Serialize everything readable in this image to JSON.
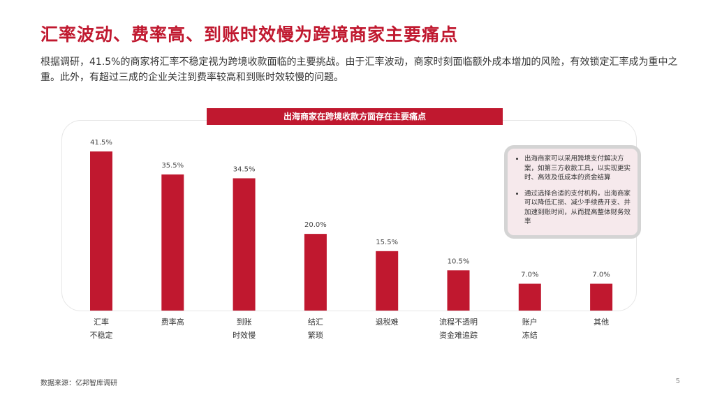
{
  "title": "汇率波动、费率高、到账时效慢为跨境商家主要痛点",
  "intro": "根据调研，41.5%的商家将汇率不稳定视为跨境收款面临的主要挑战。由于汇率波动，商家时刻面临额外成本增加的风险，有效锁定汇率成为重中之重。此外，有超过三成的企业关注到费率较高和到账时效较慢的问题。",
  "note": {
    "items": [
      "出海商家可以采用跨境支付解决方案，如第三方收款工具，以实现更实时、高效及低成本的资金结算",
      "通过选择合适的支付机构，出海商家可以降低汇损、减少手续费开支、并加速到账时间，从而提高整体财务效率"
    ]
  },
  "source": "数据来源：亿邦智库调研",
  "page_number": "5",
  "colors": {
    "accent": "#c0182f"
  },
  "chart_data": {
    "type": "bar",
    "title": "出海商家在跨境收款方面存在主要痛点",
    "categories": [
      "汇率\n不稳定",
      "费率高",
      "到账\n时效慢",
      "结汇\n繁琐",
      "退税难",
      "流程不透明\n资金难追踪",
      "账户\n冻结",
      "其他"
    ],
    "values": [
      41.5,
      35.5,
      34.5,
      20.0,
      15.5,
      10.5,
      7.0,
      7.0
    ],
    "value_labels": [
      "41.5%",
      "35.5%",
      "34.5%",
      "20.0%",
      "15.5%",
      "10.5%",
      "7.0%",
      "7.0%"
    ],
    "ylim": [
      0,
      41.5
    ],
    "grid": false,
    "legend": "none"
  }
}
